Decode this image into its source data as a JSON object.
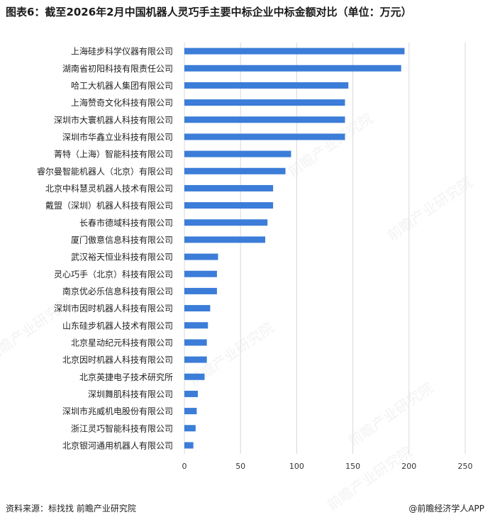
{
  "title": "图表6：截至2026年2月中国机器人灵巧手主要中标企业中标金额对比（单位：万元）",
  "footer": {
    "source_label": "资料来源：",
    "source_text": "标找找 前瞻产业研究院",
    "credit": "@前瞻经济学人APP"
  },
  "watermark": {
    "text": "前瞻产业研究院"
  },
  "colors": {
    "bar": "#3b7dd8",
    "grid": "#d9d9d9",
    "axis_text": "#333333"
  },
  "chart_data": {
    "type": "bar",
    "orientation": "horizontal",
    "categories": [
      "上海硅步科学仪器有限公司",
      "湖南省初阳科技有限责任公司",
      "哈工大机器人集团有限公司",
      "上海赞奇文化科技有限公司",
      "深圳市大寰机器人科技有限公司",
      "深圳市华鑫立业科技有限公司",
      "菁特（上海）智能科技有限公司",
      "睿尔曼智能机器人（北京）有限公司",
      "北京中科慧灵机器人技术有限公司",
      "戴盟（深圳）机器人科技有限公司",
      "长春市德域科技有限公司",
      "厦门傲意信息科技有限公司",
      "武汉裕天恒业科技有限公司",
      "灵心巧手（北京）科技有限公司",
      "南京优必乐信息科技有限公司",
      "深圳市因时机器人科技有限公司",
      "山东硅步机器人技术有限公司",
      "北京星动纪元科技有限公司",
      "北京因时机器人科技有限公司",
      "北京英捷电子技术研究所",
      "深圳舞肌科技有限公司",
      "深圳市兆威机电股份有限公司",
      "浙江灵巧智能科技有限公司",
      "北京银河通用机器人有限公司"
    ],
    "values": [
      196,
      193,
      146,
      143,
      143,
      143,
      95,
      90,
      79,
      79,
      74,
      72,
      30,
      29,
      29,
      23,
      21,
      20,
      20,
      18,
      12,
      11,
      10,
      8
    ],
    "xlim": [
      0,
      250
    ],
    "xticks": [
      0,
      50,
      100,
      150,
      200,
      250
    ],
    "grid": true
  }
}
